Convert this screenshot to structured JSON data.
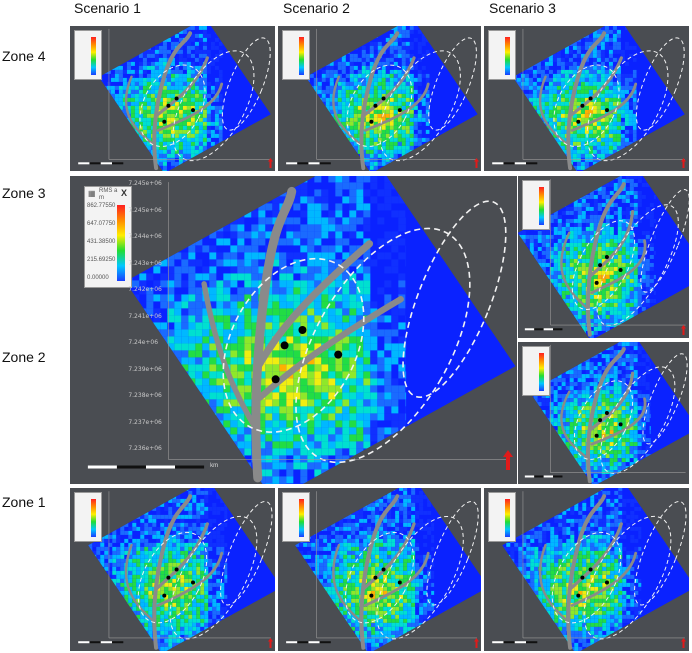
{
  "columns": [
    "Scenario 1",
    "Scenario 2",
    "Scenario 3"
  ],
  "rows": [
    "Zone 4",
    "Zone 3",
    "Zone 2",
    "Zone 1"
  ],
  "legend": {
    "title": "RMS a",
    "unit": "m",
    "values": [
      "862.77550",
      "647.07750",
      "431.38500",
      "215.69250",
      "0.00000"
    ],
    "close_symbol": "X"
  },
  "y_ticks": [
    "7.245e+06",
    "7.245e+06",
    "7.244e+06",
    "7.243e+06",
    "7.242e+06",
    "7.241e+06",
    "7.24e+06",
    "7.239e+06",
    "7.238e+06",
    "7.237e+06",
    "7.236e+06"
  ],
  "scale_unit": "km",
  "colors": {
    "panel_bg": "#4a4d52",
    "map_blue": "#0a22ff",
    "river_gray": "#8a8a8a",
    "north_arrow": "#e01a1a"
  },
  "icons": [
    "legend-grid-icon",
    "close-icon",
    "north-arrow-icon"
  ]
}
